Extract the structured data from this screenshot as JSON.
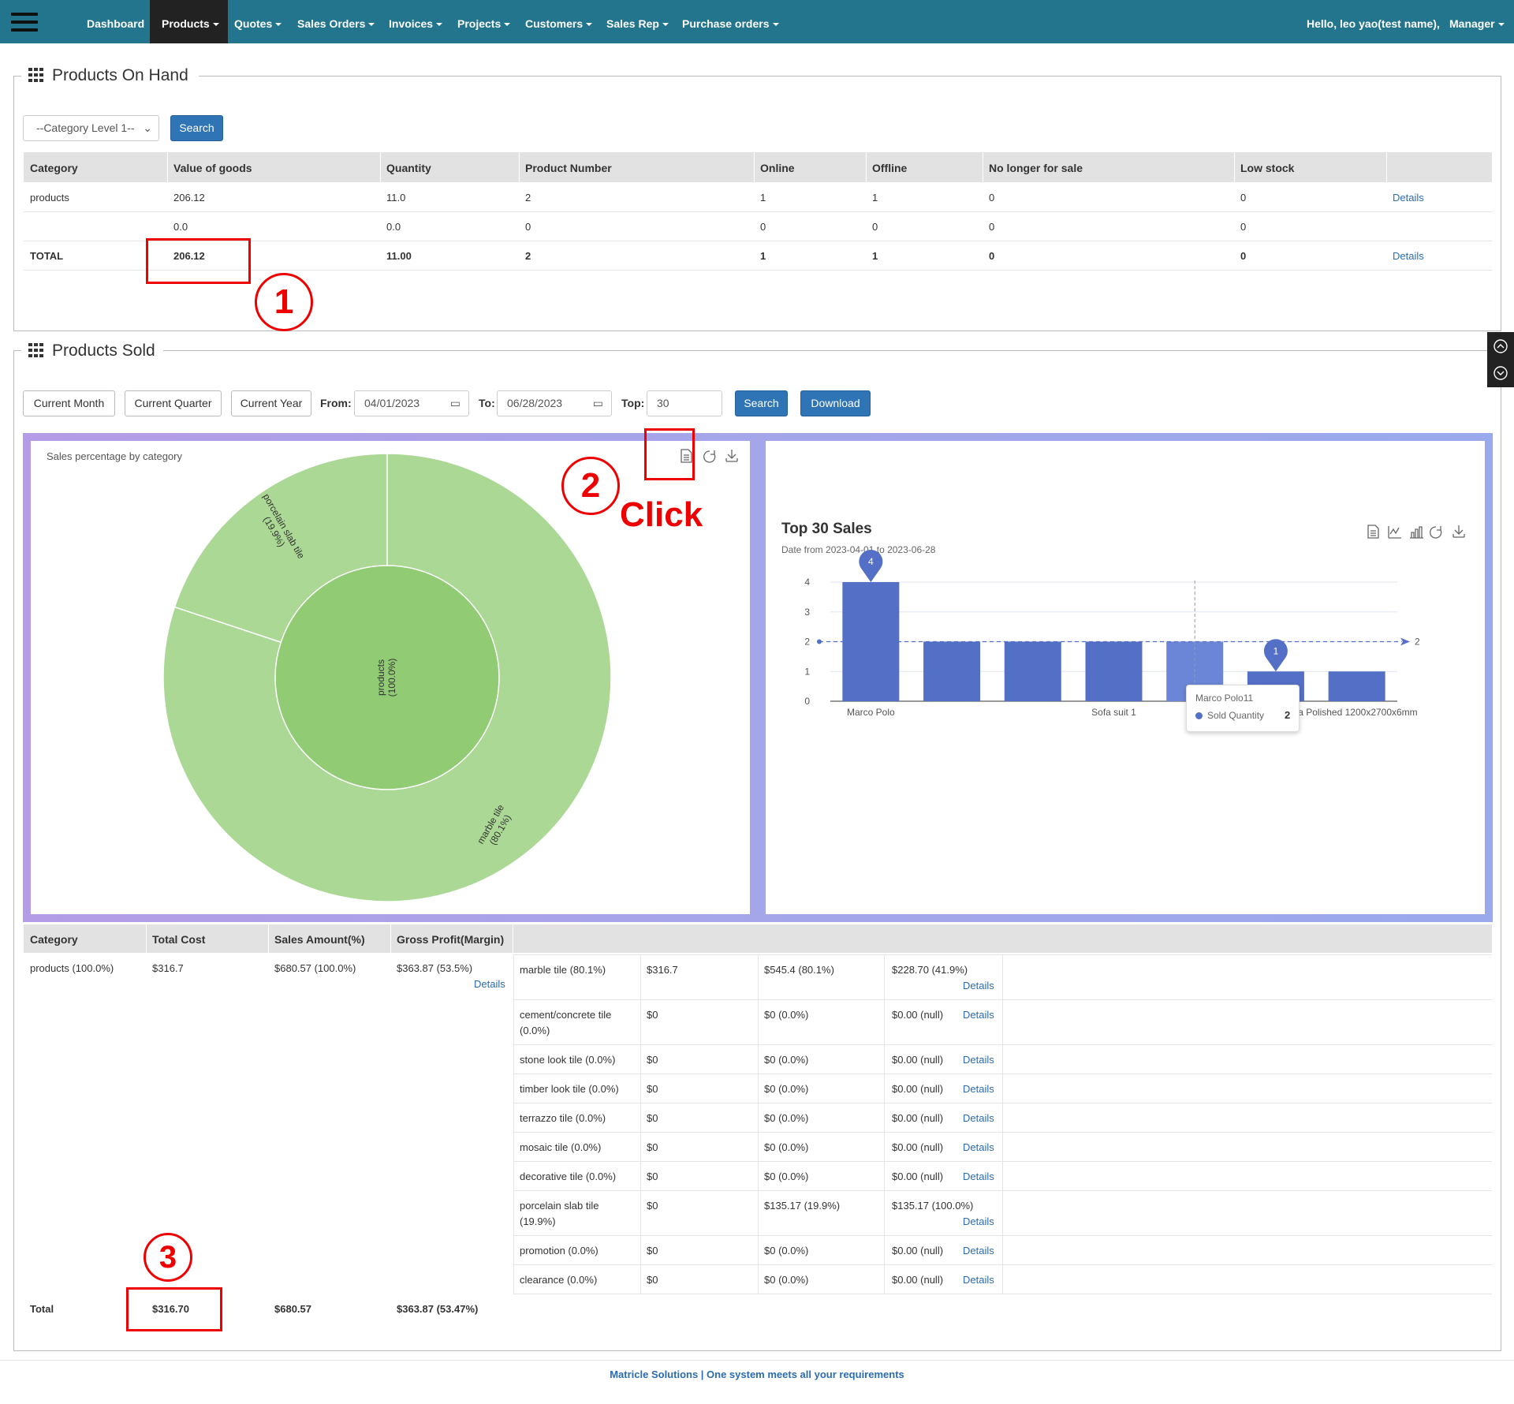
{
  "navbar": {
    "items": [
      {
        "label": "Dashboard",
        "active": false,
        "caret": false
      },
      {
        "label": "Products",
        "active": true,
        "caret": true
      },
      {
        "label": "Quotes",
        "active": false,
        "caret": true
      },
      {
        "label": "Sales Orders",
        "active": false,
        "caret": true
      },
      {
        "label": "Invoices",
        "active": false,
        "caret": true
      },
      {
        "label": "Projects",
        "active": false,
        "caret": true
      },
      {
        "label": "Customers",
        "active": false,
        "caret": true
      },
      {
        "label": "Sales Rep",
        "active": false,
        "caret": true
      },
      {
        "label": "Purchase orders",
        "active": false,
        "caret": true
      }
    ],
    "greeting": "Hello, leo yao(test name),",
    "role": "Manager"
  },
  "on_hand": {
    "title": "Products On Hand",
    "category_select": "--Category Level 1--",
    "search_label": "Search",
    "headers": [
      "Category",
      "Value of goods",
      "Quantity",
      "Product Number",
      "Online",
      "Offline",
      "No longer for sale",
      "Low stock",
      ""
    ],
    "rows": [
      [
        "products",
        "206.12",
        "11.0",
        "2",
        "1",
        "1",
        "0",
        "0",
        "Details"
      ],
      [
        "",
        "0.0",
        "0.0",
        "0",
        "0",
        "0",
        "0",
        "0",
        ""
      ],
      [
        "TOTAL",
        "206.12",
        "11.00",
        "2",
        "1",
        "1",
        "0",
        "0",
        "Details"
      ]
    ]
  },
  "sold": {
    "title": "Products Sold",
    "current_month": "Current Month",
    "current_quarter": "Current Quarter",
    "current_year": "Current Year",
    "from_label": "From:",
    "from_value": "04/01/2023",
    "to_label": "To:",
    "to_value": "06/28/2023",
    "top_label": "Top:",
    "top_value": "30",
    "search_label": "Search",
    "download_label": "Download",
    "summary_headers": [
      "Category",
      "Total Cost",
      "Sales Amount(%)",
      "Gross Profit(Margin)"
    ],
    "summary_row": {
      "category": "products (100.0%)",
      "cost": "$316.7",
      "sales": "$680.57  (100.0%)",
      "profit": "$363.87  (53.5%)",
      "details": "Details"
    },
    "sub_rows": [
      {
        "name": "marble tile (80.1%)",
        "cost": "$316.7",
        "sales": "$545.4  (80.1%)",
        "profit": "$228.70  (41.9%)",
        "details": "Details"
      },
      {
        "name": "cement/concrete tile (0.0%)",
        "cost": "$0",
        "sales": "$0  (0.0%)",
        "profit": "$0.00  (null)",
        "details": "Details"
      },
      {
        "name": "stone look tile (0.0%)",
        "cost": "$0",
        "sales": "$0  (0.0%)",
        "profit": "$0.00  (null)",
        "details": "Details"
      },
      {
        "name": "timber look tile (0.0%)",
        "cost": "$0",
        "sales": "$0  (0.0%)",
        "profit": "$0.00  (null)",
        "details": "Details"
      },
      {
        "name": "terrazzo tile (0.0%)",
        "cost": "$0",
        "sales": "$0  (0.0%)",
        "profit": "$0.00  (null)",
        "details": "Details"
      },
      {
        "name": "mosaic tile (0.0%)",
        "cost": "$0",
        "sales": "$0  (0.0%)",
        "profit": "$0.00  (null)",
        "details": "Details"
      },
      {
        "name": "decorative tile (0.0%)",
        "cost": "$0",
        "sales": "$0  (0.0%)",
        "profit": "$0.00  (null)",
        "details": "Details"
      },
      {
        "name": "porcelain slab tile (19.9%)",
        "cost": "$0",
        "sales": "$135.17  (19.9%)",
        "profit": "$135.17  (100.0%)",
        "details": "Details"
      },
      {
        "name": "promotion (0.0%)",
        "cost": "$0",
        "sales": "$0  (0.0%)",
        "profit": "$0.00  (null)",
        "details": "Details"
      },
      {
        "name": "clearance (0.0%)",
        "cost": "$0",
        "sales": "$0  (0.0%)",
        "profit": "$0.00  (null)",
        "details": "Details"
      }
    ],
    "total": {
      "label": "Total",
      "cost": "$316.70",
      "sales": "$680.57",
      "profit": "$363.87  (53.47%)"
    }
  },
  "chart_data": [
    {
      "type": "pie",
      "subtype": "sunburst",
      "title": "Sales percentage by category",
      "inner": [
        {
          "name": "products",
          "percent": "(100.0%)",
          "value": 100.0
        }
      ],
      "outer": [
        {
          "name": "marble tile",
          "percent": "(80.1%)",
          "value": 80.1
        },
        {
          "name": "porcelain slab tile",
          "percent": "(19.9%)",
          "value": 19.9
        }
      ],
      "colors": {
        "inner": "#91cc75",
        "outer": "#abd894"
      }
    },
    {
      "type": "bar",
      "title": "Top 30 Sales",
      "subtitle": "Date from 2023-04-01 to 2023-06-28",
      "categories": [
        "Marco Polo",
        "",
        "",
        "Sofa suit 1",
        "Marco Polo11",
        "",
        "Polished 1200x2700x6mm"
      ],
      "tick_labels_shown": [
        "Marco Polo",
        "Sofa suit 1",
        "ia Polished 1200x2700x6mm"
      ],
      "series": [
        {
          "name": "Sold Quantity",
          "values": [
            4,
            2,
            2,
            2,
            2,
            1,
            1
          ]
        }
      ],
      "ylim": [
        0,
        4
      ],
      "yticks": [
        0,
        1,
        2,
        3,
        4
      ],
      "mark_point_max": 4,
      "mark_point_min": 1,
      "mark_line_average": 2,
      "tooltip": {
        "title": "Marco Polo11",
        "series": "Sold Quantity",
        "value": "2"
      },
      "bar_color": "#5470c6"
    }
  ],
  "annotations": {
    "one": "1",
    "two": "2",
    "click": "Click",
    "three": "3"
  },
  "footer": "Matricle Solutions | One system meets all your requirements"
}
